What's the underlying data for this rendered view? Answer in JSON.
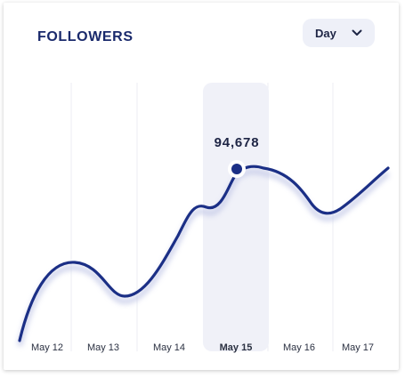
{
  "widget": {
    "title": "FOLLOWERS",
    "period_select": {
      "selected": "Day",
      "icon": "chevron-down-icon"
    },
    "highlight": {
      "date": "May 15",
      "value_label": "94,678"
    }
  },
  "colors": {
    "line": "#1b2f86",
    "highlight_band": "#f0f1f8",
    "title": "#1a2a6c"
  },
  "chart_data": {
    "type": "line",
    "title": "FOLLOWERS",
    "categories": [
      "May 12",
      "May 13",
      "May 14",
      "May 15",
      "May 16",
      "May 17"
    ],
    "active_category": "May 15",
    "active_value": 94678,
    "grid": "vertical",
    "legend": "none"
  }
}
